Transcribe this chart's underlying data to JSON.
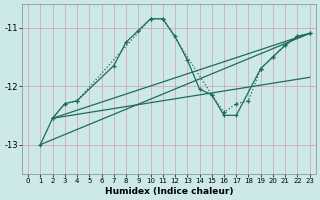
{
  "xlabel": "Humidex (Indice chaleur)",
  "background_color": "#cce8e8",
  "line_color": "#1e6b5e",
  "xlim": [
    -0.5,
    23.5
  ],
  "ylim": [
    -13.5,
    -10.6
  ],
  "yticks": [
    -13,
    -12,
    -11
  ],
  "xticks": [
    0,
    1,
    2,
    3,
    4,
    5,
    6,
    7,
    8,
    9,
    10,
    11,
    12,
    13,
    14,
    15,
    16,
    17,
    18,
    19,
    20,
    21,
    22,
    23
  ],
  "vgrid_color": "#d8a0a0",
  "hgrid_color": "#d8a0a0",
  "series1_x": [
    1,
    2,
    3,
    4,
    7,
    8,
    9,
    10,
    11,
    12,
    13,
    14,
    15,
    16,
    17,
    19,
    20,
    21,
    22,
    23
  ],
  "series1_y": [
    -13.0,
    -12.55,
    -12.3,
    -12.25,
    -11.65,
    -11.25,
    -11.05,
    -10.85,
    -10.85,
    -11.15,
    -11.55,
    -12.05,
    -12.15,
    -12.5,
    -12.5,
    -11.7,
    -11.5,
    -11.3,
    -11.15,
    -11.1
  ],
  "series2_x": [
    2,
    3,
    4,
    10,
    11,
    15,
    16,
    17,
    18,
    19,
    20,
    21,
    22,
    23
  ],
  "series2_y": [
    -12.55,
    -12.3,
    -12.25,
    -10.85,
    -10.85,
    -12.15,
    -12.45,
    -12.3,
    -12.25,
    -11.7,
    -11.5,
    -11.3,
    -11.15,
    -11.1
  ],
  "line1_x": [
    1,
    23
  ],
  "line1_y": [
    -13.0,
    -11.1
  ],
  "line2_x": [
    2,
    23
  ],
  "line2_y": [
    -12.55,
    -11.1
  ],
  "line3_x": [
    2,
    23
  ],
  "line3_y": [
    -12.55,
    -11.85
  ]
}
